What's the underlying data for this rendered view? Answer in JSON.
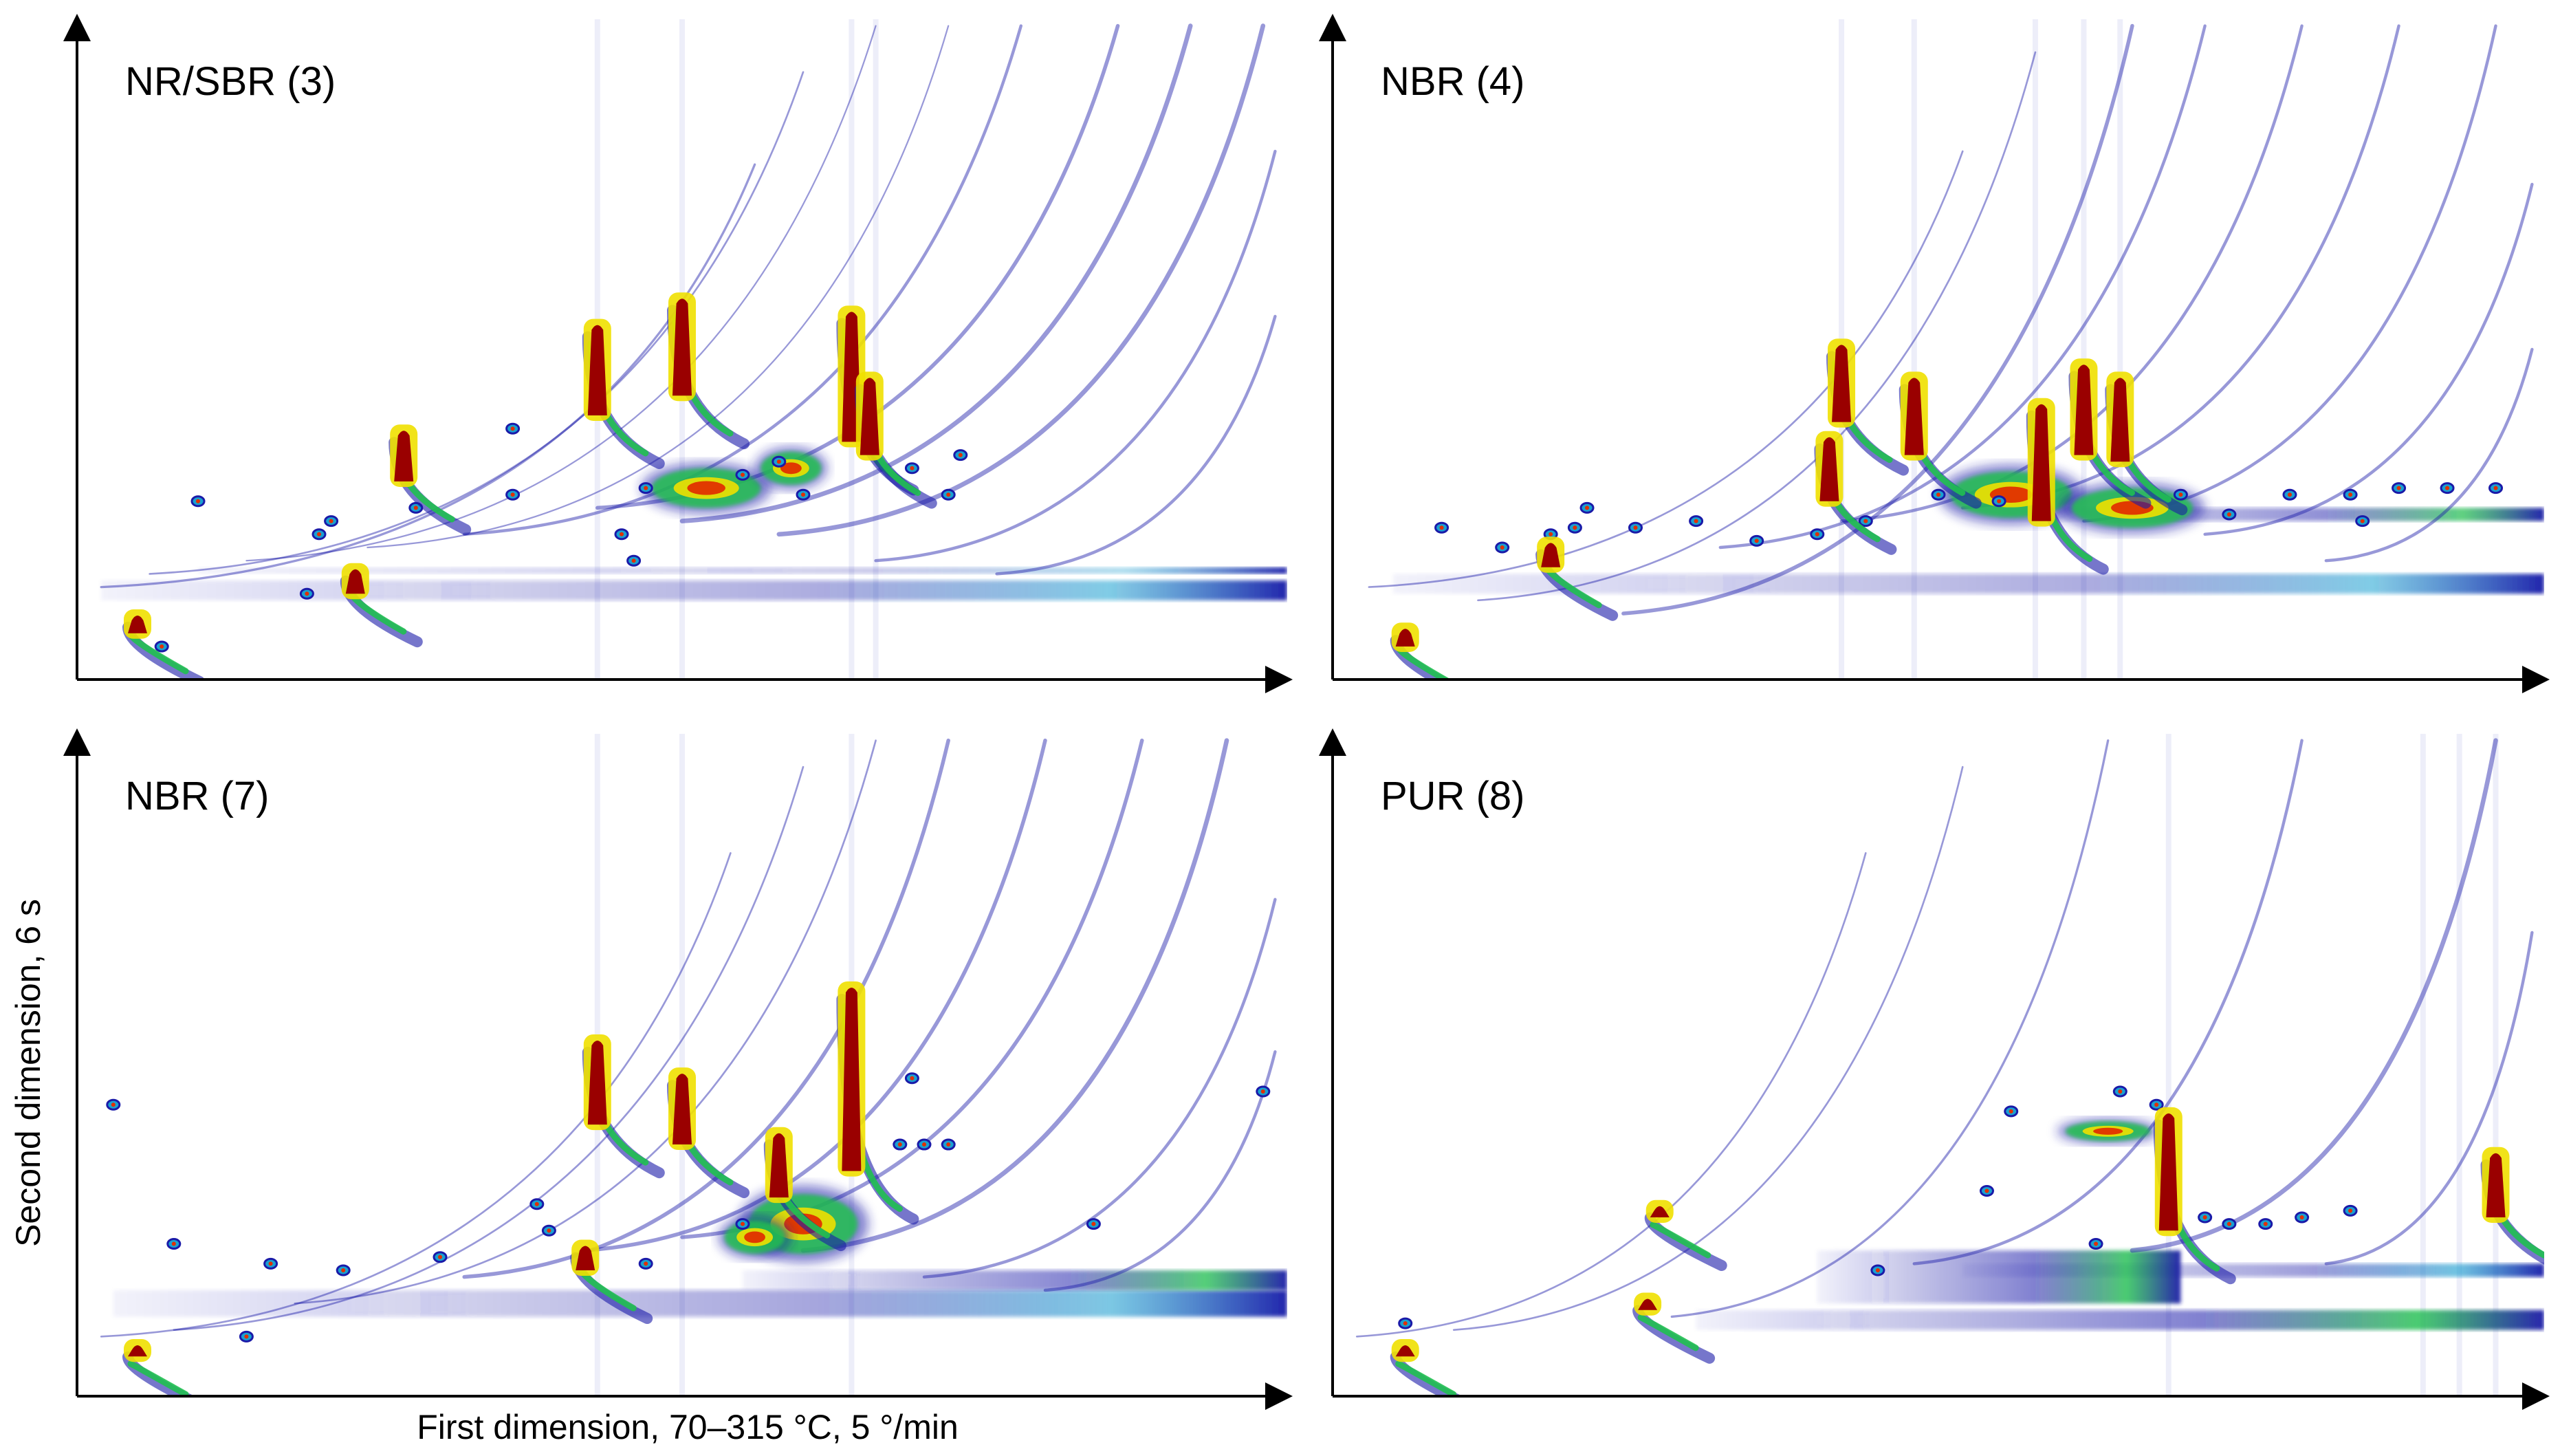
{
  "chart_data": {
    "type": "heatmap",
    "description_type": "GCxGC contour plots",
    "xlabel": "First dimension, 70–315 °C, 5 °/min",
    "ylabel": "Second dimension, 6 s",
    "colormap": [
      "#ffffff",
      "#1a1aa8",
      "#1aa0d0",
      "#20c050",
      "#f0e000",
      "#e03000",
      "#9a0000"
    ],
    "panels": [
      {
        "label": "NR/SBR (3)",
        "x_range": [
          0,
          1
        ],
        "y_range": [
          0,
          1
        ],
        "curves": [
          {
            "x0": 0.02,
            "y0": 0.14,
            "x1": 0.56,
            "y1": 0.78,
            "w": 1.5
          },
          {
            "x0": 0.06,
            "y0": 0.16,
            "x1": 0.6,
            "y1": 0.92,
            "w": 1.2
          },
          {
            "x0": 0.14,
            "y0": 0.18,
            "x1": 0.66,
            "y1": 0.99,
            "w": 1.0
          },
          {
            "x0": 0.24,
            "y0": 0.2,
            "x1": 0.72,
            "y1": 0.99,
            "w": 1.0
          },
          {
            "x0": 0.32,
            "y0": 0.22,
            "x1": 0.78,
            "y1": 0.99,
            "w": 2.0
          },
          {
            "x0": 0.43,
            "y0": 0.26,
            "x1": 0.86,
            "y1": 0.99,
            "w": 2.5
          },
          {
            "x0": 0.5,
            "y0": 0.24,
            "x1": 0.92,
            "y1": 0.99,
            "w": 3.0
          },
          {
            "x0": 0.58,
            "y0": 0.22,
            "x1": 0.98,
            "y1": 0.99,
            "w": 3.0
          },
          {
            "x0": 0.66,
            "y0": 0.18,
            "x1": 0.99,
            "y1": 0.8,
            "w": 2.0
          },
          {
            "x0": 0.76,
            "y0": 0.16,
            "x1": 0.99,
            "y1": 0.55,
            "w": 2.0
          }
        ],
        "bands": [
          {
            "x0": 0.02,
            "y0": 0.12,
            "x1": 1.0,
            "y1": 0.15,
            "intensity": 0.6
          },
          {
            "x0": 0.1,
            "y0": 0.16,
            "x1": 1.0,
            "y1": 0.17,
            "intensity": 0.4
          }
        ],
        "peaks": [
          {
            "x": 0.43,
            "y": 0.4,
            "h": 0.14,
            "intensity": 1.0
          },
          {
            "x": 0.5,
            "y": 0.43,
            "h": 0.15,
            "intensity": 1.0
          },
          {
            "x": 0.64,
            "y": 0.36,
            "h": 0.2,
            "intensity": 1.0
          },
          {
            "x": 0.655,
            "y": 0.34,
            "h": 0.12,
            "intensity": 1.0
          },
          {
            "x": 0.27,
            "y": 0.3,
            "h": 0.08,
            "intensity": 1.0
          },
          {
            "x": 0.23,
            "y": 0.13,
            "h": 0.04,
            "intensity": 1.0
          },
          {
            "x": 0.05,
            "y": 0.07,
            "h": 0.03,
            "intensity": 0.9
          }
        ],
        "spots": [
          {
            "x": 0.1,
            "y": 0.27
          },
          {
            "x": 0.2,
            "y": 0.22
          },
          {
            "x": 0.21,
            "y": 0.24
          },
          {
            "x": 0.28,
            "y": 0.26
          },
          {
            "x": 0.36,
            "y": 0.28
          },
          {
            "x": 0.36,
            "y": 0.38
          },
          {
            "x": 0.45,
            "y": 0.22
          },
          {
            "x": 0.47,
            "y": 0.29
          },
          {
            "x": 0.55,
            "y": 0.31
          },
          {
            "x": 0.58,
            "y": 0.33
          },
          {
            "x": 0.6,
            "y": 0.28
          },
          {
            "x": 0.69,
            "y": 0.32
          },
          {
            "x": 0.72,
            "y": 0.28
          },
          {
            "x": 0.73,
            "y": 0.34
          },
          {
            "x": 0.46,
            "y": 0.18
          },
          {
            "x": 0.19,
            "y": 0.13
          },
          {
            "x": 0.07,
            "y": 0.05
          }
        ],
        "smears": [
          {
            "x": 0.52,
            "y": 0.29,
            "w": 0.09,
            "h": 0.06
          },
          {
            "x": 0.59,
            "y": 0.32,
            "w": 0.05,
            "h": 0.05
          }
        ],
        "streaks": [
          0.43,
          0.5,
          0.64,
          0.66
        ]
      },
      {
        "label": "NBR (4)",
        "x_range": [
          0,
          1
        ],
        "y_range": [
          0,
          1
        ],
        "curves": [
          {
            "x0": 0.03,
            "y0": 0.14,
            "x1": 0.52,
            "y1": 0.8,
            "w": 1.2
          },
          {
            "x0": 0.12,
            "y0": 0.12,
            "x1": 0.58,
            "y1": 0.95,
            "w": 1.2
          },
          {
            "x0": 0.24,
            "y0": 0.1,
            "x1": 0.66,
            "y1": 0.99,
            "w": 2.5
          },
          {
            "x0": 0.32,
            "y0": 0.2,
            "x1": 0.72,
            "y1": 0.99,
            "w": 2.0
          },
          {
            "x0": 0.42,
            "y0": 0.24,
            "x1": 0.8,
            "y1": 0.99,
            "w": 2.0
          },
          {
            "x0": 0.52,
            "y0": 0.26,
            "x1": 0.88,
            "y1": 0.99,
            "w": 2.0
          },
          {
            "x0": 0.62,
            "y0": 0.24,
            "x1": 0.96,
            "y1": 0.99,
            "w": 2.0
          },
          {
            "x0": 0.72,
            "y0": 0.22,
            "x1": 0.99,
            "y1": 0.75,
            "w": 2.0
          },
          {
            "x0": 0.82,
            "y0": 0.18,
            "x1": 0.99,
            "y1": 0.5,
            "w": 2.0
          }
        ],
        "bands": [
          {
            "x0": 0.05,
            "y0": 0.13,
            "x1": 1.0,
            "y1": 0.16,
            "intensity": 0.6
          },
          {
            "x0": 0.55,
            "y0": 0.24,
            "x1": 1.0,
            "y1": 0.26,
            "intensity": 0.8
          }
        ],
        "peaks": [
          {
            "x": 0.42,
            "y": 0.39,
            "h": 0.12,
            "intensity": 1.0
          },
          {
            "x": 0.48,
            "y": 0.34,
            "h": 0.12,
            "intensity": 1.0
          },
          {
            "x": 0.62,
            "y": 0.34,
            "h": 0.14,
            "intensity": 1.0
          },
          {
            "x": 0.65,
            "y": 0.33,
            "h": 0.13,
            "intensity": 1.0
          },
          {
            "x": 0.585,
            "y": 0.24,
            "h": 0.18,
            "intensity": 1.0
          },
          {
            "x": 0.41,
            "y": 0.27,
            "h": 0.1,
            "intensity": 1.0
          },
          {
            "x": 0.18,
            "y": 0.17,
            "h": 0.04,
            "intensity": 1.0
          },
          {
            "x": 0.06,
            "y": 0.05,
            "h": 0.03,
            "intensity": 0.9
          }
        ],
        "spots": [
          {
            "x": 0.09,
            "y": 0.23
          },
          {
            "x": 0.18,
            "y": 0.22
          },
          {
            "x": 0.2,
            "y": 0.23
          },
          {
            "x": 0.21,
            "y": 0.26
          },
          {
            "x": 0.25,
            "y": 0.23
          },
          {
            "x": 0.3,
            "y": 0.24
          },
          {
            "x": 0.35,
            "y": 0.21
          },
          {
            "x": 0.4,
            "y": 0.22
          },
          {
            "x": 0.44,
            "y": 0.24
          },
          {
            "x": 0.5,
            "y": 0.28
          },
          {
            "x": 0.55,
            "y": 0.27
          },
          {
            "x": 0.7,
            "y": 0.28
          },
          {
            "x": 0.74,
            "y": 0.25
          },
          {
            "x": 0.79,
            "y": 0.28
          },
          {
            "x": 0.84,
            "y": 0.28
          },
          {
            "x": 0.88,
            "y": 0.29
          },
          {
            "x": 0.92,
            "y": 0.29
          },
          {
            "x": 0.96,
            "y": 0.29
          },
          {
            "x": 0.85,
            "y": 0.24
          },
          {
            "x": 0.14,
            "y": 0.2
          }
        ],
        "smears": [
          {
            "x": 0.56,
            "y": 0.28,
            "w": 0.1,
            "h": 0.07
          },
          {
            "x": 0.66,
            "y": 0.26,
            "w": 0.1,
            "h": 0.06
          }
        ],
        "streaks": [
          0.42,
          0.48,
          0.58,
          0.62,
          0.65
        ]
      },
      {
        "label": "NBR (7)",
        "x_range": [
          0,
          1
        ],
        "y_range": [
          0,
          1
        ],
        "curves": [
          {
            "x0": 0.02,
            "y0": 0.09,
            "x1": 0.54,
            "y1": 0.82,
            "w": 1.2
          },
          {
            "x0": 0.08,
            "y0": 0.1,
            "x1": 0.6,
            "y1": 0.95,
            "w": 1.2
          },
          {
            "x0": 0.18,
            "y0": 0.14,
            "x1": 0.66,
            "y1": 0.99,
            "w": 1.2
          },
          {
            "x0": 0.32,
            "y0": 0.18,
            "x1": 0.72,
            "y1": 0.99,
            "w": 2.5
          },
          {
            "x0": 0.42,
            "y0": 0.22,
            "x1": 0.8,
            "y1": 0.99,
            "w": 2.5
          },
          {
            "x0": 0.5,
            "y0": 0.24,
            "x1": 0.88,
            "y1": 0.99,
            "w": 2.5
          },
          {
            "x0": 0.6,
            "y0": 0.22,
            "x1": 0.95,
            "y1": 0.99,
            "w": 3.0
          },
          {
            "x0": 0.7,
            "y0": 0.18,
            "x1": 0.99,
            "y1": 0.75,
            "w": 2.0
          },
          {
            "x0": 0.8,
            "y0": 0.16,
            "x1": 0.99,
            "y1": 0.52,
            "w": 2.0
          }
        ],
        "bands": [
          {
            "x0": 0.03,
            "y0": 0.12,
            "x1": 1.0,
            "y1": 0.16,
            "intensity": 0.65
          },
          {
            "x0": 0.55,
            "y0": 0.16,
            "x1": 1.0,
            "y1": 0.19,
            "intensity": 0.85
          }
        ],
        "peaks": [
          {
            "x": 0.43,
            "y": 0.41,
            "h": 0.13,
            "intensity": 1.0
          },
          {
            "x": 0.5,
            "y": 0.38,
            "h": 0.11,
            "intensity": 1.0
          },
          {
            "x": 0.64,
            "y": 0.34,
            "h": 0.28,
            "intensity": 1.0
          },
          {
            "x": 0.58,
            "y": 0.3,
            "h": 0.1,
            "intensity": 0.9
          },
          {
            "x": 0.42,
            "y": 0.19,
            "h": 0.04,
            "intensity": 1.0
          },
          {
            "x": 0.05,
            "y": 0.06,
            "h": 0.02,
            "intensity": 0.9
          }
        ],
        "spots": [
          {
            "x": 0.03,
            "y": 0.44
          },
          {
            "x": 0.08,
            "y": 0.23
          },
          {
            "x": 0.16,
            "y": 0.2
          },
          {
            "x": 0.22,
            "y": 0.19
          },
          {
            "x": 0.3,
            "y": 0.21
          },
          {
            "x": 0.38,
            "y": 0.29
          },
          {
            "x": 0.39,
            "y": 0.25
          },
          {
            "x": 0.47,
            "y": 0.2
          },
          {
            "x": 0.55,
            "y": 0.26
          },
          {
            "x": 0.68,
            "y": 0.38
          },
          {
            "x": 0.7,
            "y": 0.38
          },
          {
            "x": 0.72,
            "y": 0.38
          },
          {
            "x": 0.84,
            "y": 0.26
          },
          {
            "x": 0.98,
            "y": 0.46
          },
          {
            "x": 0.14,
            "y": 0.09
          },
          {
            "x": 0.69,
            "y": 0.48
          }
        ],
        "smears": [
          {
            "x": 0.6,
            "y": 0.26,
            "w": 0.09,
            "h": 0.09
          },
          {
            "x": 0.56,
            "y": 0.24,
            "w": 0.05,
            "h": 0.05
          }
        ],
        "streaks": [
          0.43,
          0.5,
          0.64
        ]
      },
      {
        "label": "PUR (8)",
        "x_range": [
          0,
          1
        ],
        "y_range": [
          0,
          1
        ],
        "curves": [
          {
            "x0": 0.02,
            "y0": 0.09,
            "x1": 0.44,
            "y1": 0.82,
            "w": 1.2
          },
          {
            "x0": 0.1,
            "y0": 0.1,
            "x1": 0.52,
            "y1": 0.95,
            "w": 1.2
          },
          {
            "x0": 0.28,
            "y0": 0.12,
            "x1": 0.64,
            "y1": 0.99,
            "w": 1.5
          },
          {
            "x0": 0.48,
            "y0": 0.2,
            "x1": 0.8,
            "y1": 0.99,
            "w": 2.0
          },
          {
            "x0": 0.66,
            "y0": 0.22,
            "x1": 0.96,
            "y1": 0.99,
            "w": 3.0
          },
          {
            "x0": 0.82,
            "y0": 0.2,
            "x1": 0.99,
            "y1": 0.7,
            "w": 2.0
          }
        ],
        "bands": [
          {
            "x0": 0.3,
            "y0": 0.1,
            "x1": 1.0,
            "y1": 0.13,
            "intensity": 0.9
          },
          {
            "x0": 0.52,
            "y0": 0.18,
            "x1": 1.0,
            "y1": 0.2,
            "intensity": 0.7
          },
          {
            "x0": 0.4,
            "y0": 0.14,
            "x1": 0.7,
            "y1": 0.22,
            "intensity": 0.9
          }
        ],
        "peaks": [
          {
            "x": 0.69,
            "y": 0.25,
            "h": 0.18,
            "intensity": 1.0
          },
          {
            "x": 0.96,
            "y": 0.27,
            "h": 0.1,
            "intensity": 1.0
          },
          {
            "x": 0.27,
            "y": 0.27,
            "h": 0.02,
            "intensity": 1.0
          },
          {
            "x": 0.26,
            "y": 0.13,
            "h": 0.02,
            "intensity": 1.0
          },
          {
            "x": 0.06,
            "y": 0.06,
            "h": 0.02,
            "intensity": 0.9
          }
        ],
        "spots": [
          {
            "x": 0.56,
            "y": 0.43
          },
          {
            "x": 0.65,
            "y": 0.46
          },
          {
            "x": 0.68,
            "y": 0.44
          },
          {
            "x": 0.72,
            "y": 0.27
          },
          {
            "x": 0.74,
            "y": 0.26
          },
          {
            "x": 0.77,
            "y": 0.26
          },
          {
            "x": 0.8,
            "y": 0.27
          },
          {
            "x": 0.84,
            "y": 0.28
          },
          {
            "x": 0.63,
            "y": 0.23
          },
          {
            "x": 0.45,
            "y": 0.19
          },
          {
            "x": 0.54,
            "y": 0.31
          },
          {
            "x": 0.06,
            "y": 0.11
          }
        ],
        "smears": [
          {
            "x": 0.64,
            "y": 0.4,
            "w": 0.07,
            "h": 0.03
          }
        ],
        "streaks": [
          0.69,
          0.9,
          0.93,
          0.96
        ]
      }
    ]
  }
}
